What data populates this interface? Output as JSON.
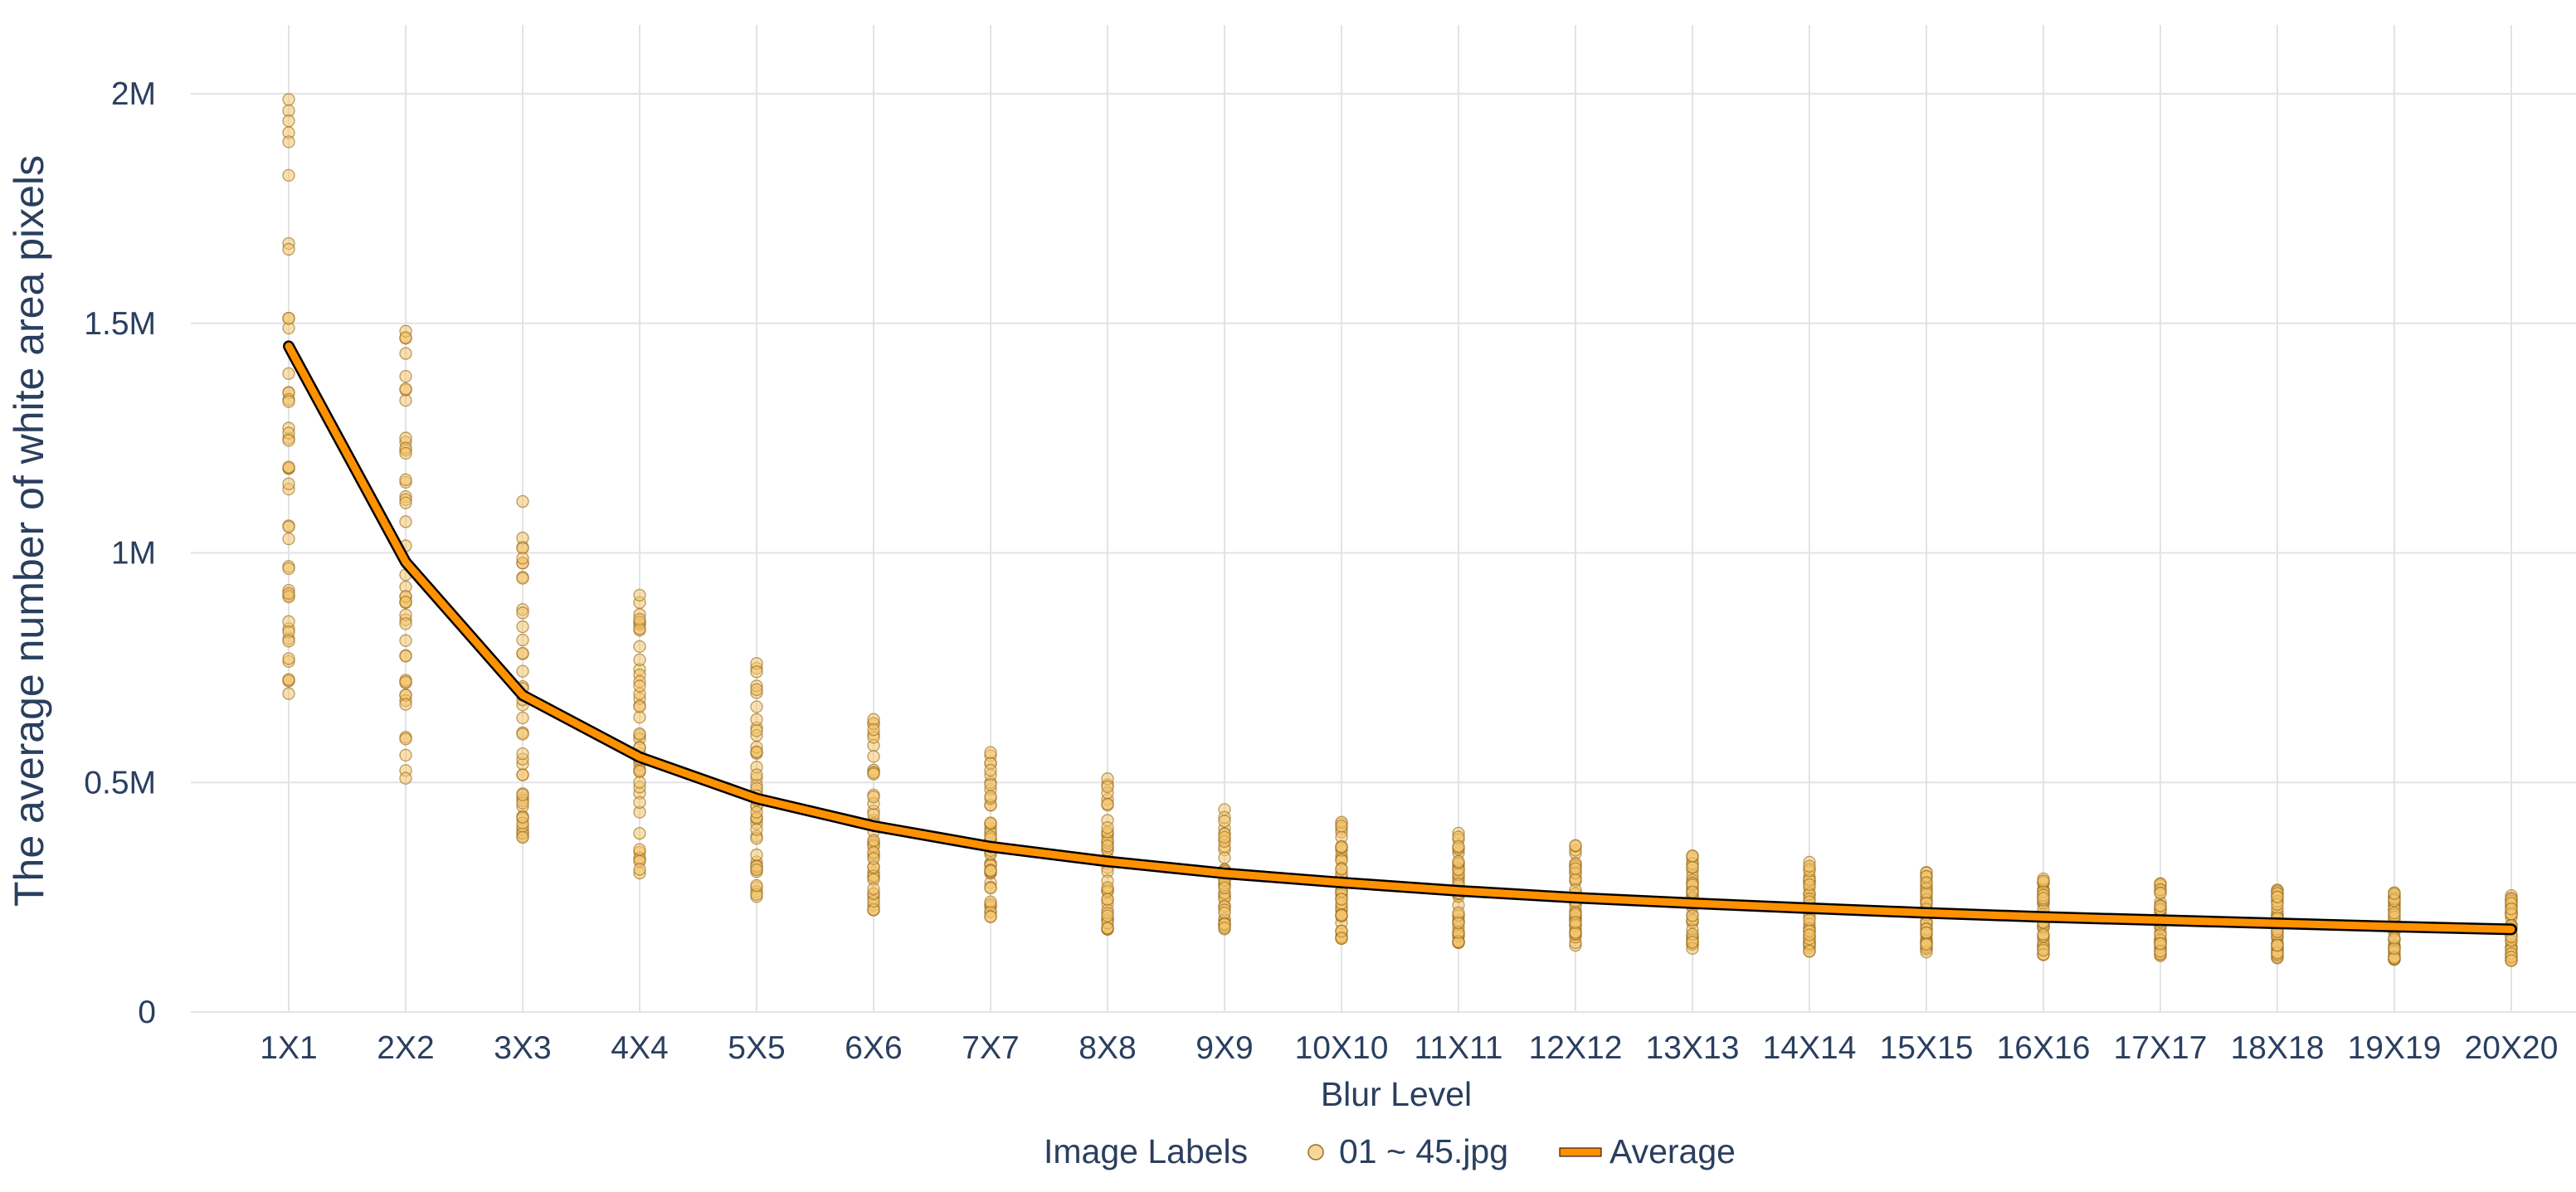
{
  "chart_data": {
    "type": "scatter",
    "xlabel": "Blur Level",
    "ylabel": "The average number of white area pixels",
    "categories": [
      "1X1",
      "2X2",
      "3X3",
      "4X4",
      "5X5",
      "6X6",
      "7X7",
      "8X8",
      "9X9",
      "10X10",
      "11X11",
      "12X12",
      "13X13",
      "14X14",
      "15X15",
      "16X16",
      "17X17",
      "18X18",
      "19X19",
      "20X20"
    ],
    "ylim": [
      0,
      2150000
    ],
    "yticks": [
      0,
      500000,
      1000000,
      1500000,
      2000000
    ],
    "ytick_labels": [
      "0",
      "0.5M",
      "1M",
      "1.5M",
      "2M"
    ],
    "grid": true,
    "legend": {
      "title": "Image Labels",
      "placement": "bottom-center",
      "entries": [
        "01 ~ 45.jpg",
        "Average"
      ]
    },
    "series": [
      {
        "name": "01 ~ 45.jpg",
        "mode": "markers",
        "color": "#f2c46d",
        "edge_color": "#9a6b1f",
        "points_per_category": 45,
        "range_per_category": [
          [
            650000,
            2010000
          ],
          [
            495000,
            1520000
          ],
          [
            380000,
            1120000
          ],
          [
            300000,
            915000
          ],
          [
            245000,
            765000
          ],
          [
            215000,
            655000
          ],
          [
            195000,
            575000
          ],
          [
            180000,
            510000
          ],
          [
            170000,
            460000
          ],
          [
            160000,
            420000
          ],
          [
            150000,
            390000
          ],
          [
            145000,
            365000
          ],
          [
            138000,
            345000
          ],
          [
            132000,
            330000
          ],
          [
            128000,
            310000
          ],
          [
            123000,
            295000
          ],
          [
            120000,
            282000
          ],
          [
            117000,
            272000
          ],
          [
            114000,
            262000
          ],
          [
            111000,
            255000
          ]
        ]
      },
      {
        "name": "Average",
        "mode": "line",
        "color": "#ff9100",
        "outline_color": "#000000",
        "values": [
          1450000,
          980000,
          690000,
          555000,
          465000,
          405000,
          360000,
          328000,
          302000,
          282000,
          264000,
          249000,
          237000,
          226000,
          216000,
          207000,
          200000,
          193000,
          186000,
          180000
        ]
      }
    ]
  }
}
